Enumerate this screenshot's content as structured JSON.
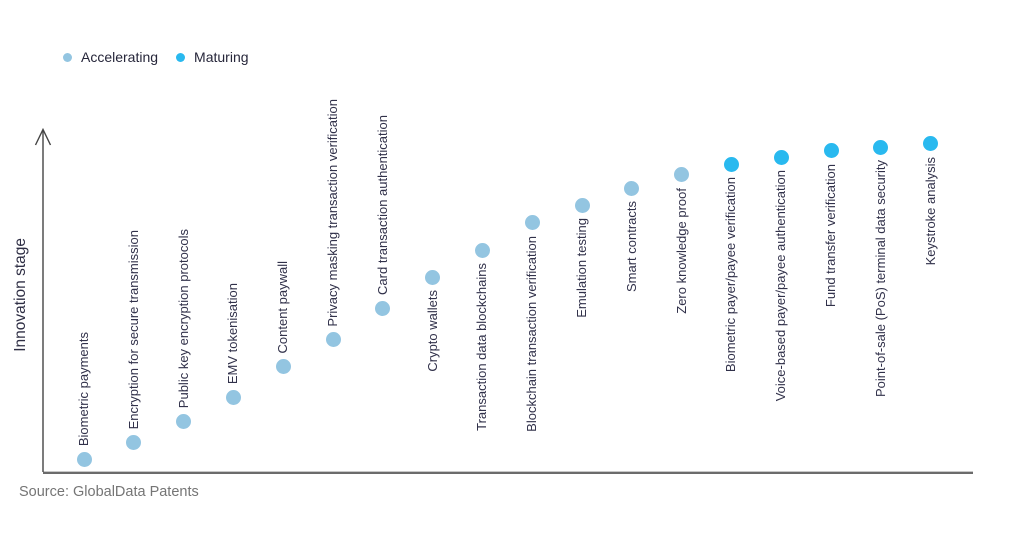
{
  "source": "Source: GlobalData Patents",
  "chart_data": {
    "type": "scatter",
    "title": "",
    "xlabel": "",
    "ylabel": "Innovation stage",
    "y_axis": {
      "arrow": true,
      "ticks": false,
      "numeric_labels": false,
      "range_note": "qualitative innovation stage, low to high"
    },
    "x_axis": {
      "ticks": false,
      "labels": "rotated point labels at each dot"
    },
    "grid": false,
    "legend_position": "top-left",
    "series": [
      {
        "name": "Accelerating",
        "color": "#93c5e1",
        "points": [
          {
            "label": "Biometric payments",
            "stage": 4,
            "label_side": "above"
          },
          {
            "label": "Encryption for secure transmission",
            "stage": 9,
            "label_side": "above"
          },
          {
            "label": "Public key encryption protocols",
            "stage": 15,
            "label_side": "above"
          },
          {
            "label": "EMV tokenisation",
            "stage": 22,
            "label_side": "above"
          },
          {
            "label": "Content paywall",
            "stage": 31,
            "label_side": "above"
          },
          {
            "label": "Privacy masking transaction verification",
            "stage": 39,
            "label_side": "above"
          },
          {
            "label": "Card transaction authentication",
            "stage": 48,
            "label_side": "above"
          },
          {
            "label": "Crypto wallets",
            "stage": 57,
            "label_side": "below"
          },
          {
            "label": "Transaction data blockchains",
            "stage": 65,
            "label_side": "below"
          },
          {
            "label": "Blockchain transaction verification",
            "stage": 73,
            "label_side": "below"
          },
          {
            "label": "Emulation testing",
            "stage": 78,
            "label_side": "below"
          },
          {
            "label": "Smart contracts",
            "stage": 83,
            "label_side": "below"
          },
          {
            "label": "Zero knowledge proof",
            "stage": 87,
            "label_side": "below"
          }
        ]
      },
      {
        "name": "Maturing",
        "color": "#29b9ef",
        "points": [
          {
            "label": "Biometric payer/payee verification",
            "stage": 90,
            "label_side": "below"
          },
          {
            "label": "Voice-based payer/payee authentication",
            "stage": 92,
            "label_side": "below"
          },
          {
            "label": "Fund transfer verification",
            "stage": 94,
            "label_side": "below"
          },
          {
            "label": "Point-of-sale (PoS) terminal data security",
            "stage": 95,
            "label_side": "below"
          },
          {
            "label": "Keystroke analysis",
            "stage": 96,
            "label_side": "below"
          }
        ]
      }
    ]
  }
}
